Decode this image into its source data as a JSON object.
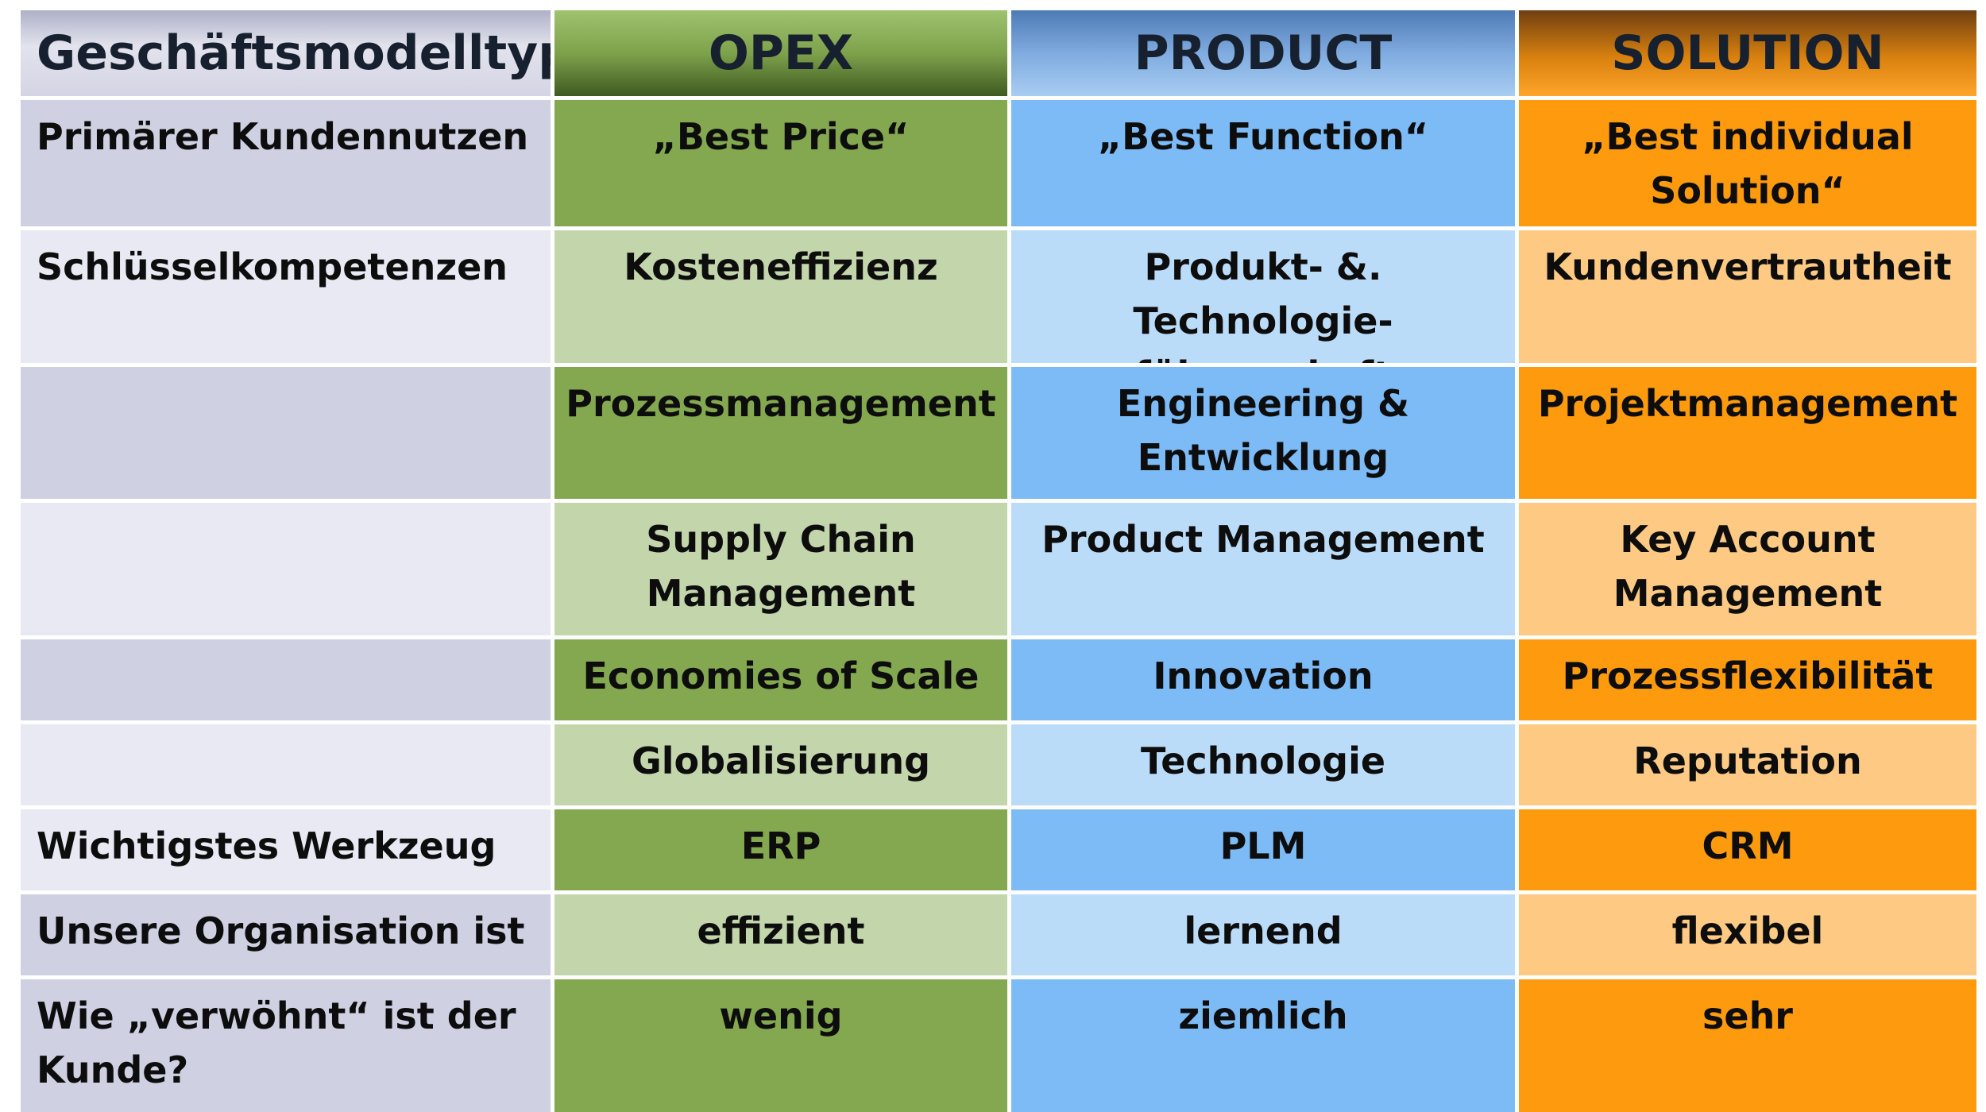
{
  "header": {
    "type": "Geschäftsmodelltyp",
    "opex": "OPEX",
    "product": "PRODUCT",
    "solution": "SOLUTION"
  },
  "rows": [
    {
      "label": "Primärer Kundennutzen",
      "opex": "„Best Price“",
      "product": "„Best Function“",
      "solution": "„Best individual Solution“"
    },
    {
      "label": "Schlüsselkompetenzen",
      "opex": "Kosteneffizienz",
      "product": "Produkt- &. Technologie-führerschaft",
      "solution": "Kundenvertrautheit"
    },
    {
      "label": "",
      "opex": "Prozessmanagement",
      "product": "Engineering & Entwicklung",
      "solution": "Projektmanagement"
    },
    {
      "label": "",
      "opex": "Supply Chain Management",
      "product": "Product Management",
      "solution": "Key Account Management"
    },
    {
      "label": "",
      "opex": "Economies of Scale",
      "product": "Innovation",
      "solution": "Prozessflexibilität"
    },
    {
      "label": "",
      "opex": "Globalisierung",
      "product": "Technologie",
      "solution": "Reputation"
    },
    {
      "label": "Wichtigstes Werkzeug",
      "opex": "ERP",
      "product": "PLM",
      "solution": "CRM"
    },
    {
      "label": "Unsere Organisation ist",
      "opex": "effizient",
      "product": "lernend",
      "solution": "flexibel"
    },
    {
      "label": "Wie „verwöhnt“ ist der Kunde?",
      "opex": "wenig",
      "product": "ziemlich",
      "solution": "sehr"
    }
  ],
  "colors": {
    "opex_dark": "#84a84f",
    "opex_light": "#c3d5ab",
    "product_dark": "#7dbbf7",
    "product_light": "#bbdcf9",
    "solution_dark": "#fe9a0d",
    "solution_light": "#fdc983",
    "label_dark": "#cfd0e2",
    "label_light": "#e8e9f2"
  }
}
